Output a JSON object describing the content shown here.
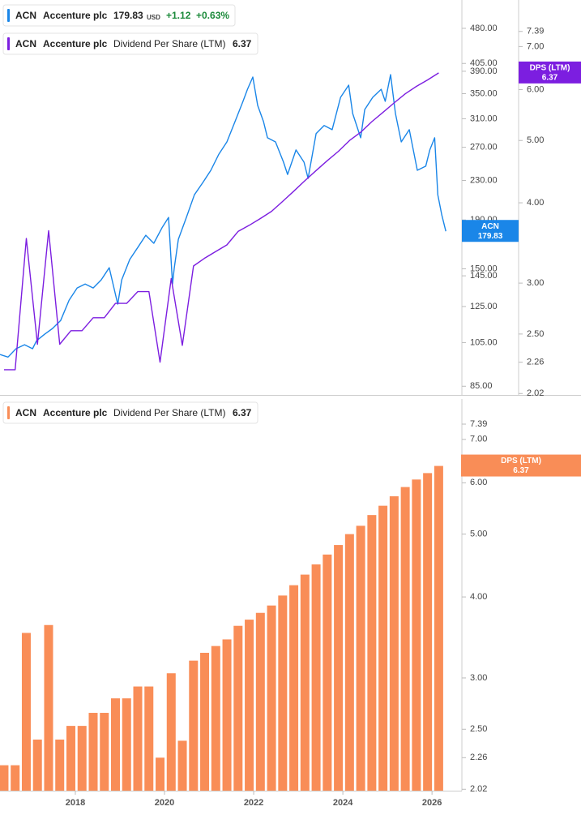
{
  "chart_data": [
    {
      "type": "line",
      "quote": {
        "currency": "USD",
        "change": "+1.12",
        "change_pct": "+0.63%"
      },
      "log": true,
      "xlim": [
        2016.31,
        2026.67
      ],
      "ylim": [
        81.5,
        550.5
      ],
      "yticks": [
        {
          "value": 85,
          "label": "85.00"
        },
        {
          "value": 105,
          "label": "105.00"
        },
        {
          "value": 125,
          "label": "125.00"
        },
        {
          "value": 145,
          "label": "145.00"
        },
        {
          "value": 150,
          "label": "150.00"
        },
        {
          "value": 190,
          "label": "190.00"
        },
        {
          "value": 230,
          "label": "230.00"
        },
        {
          "value": 270,
          "label": "270.00"
        },
        {
          "value": 310,
          "label": "310.00"
        },
        {
          "value": 350,
          "label": "350.00"
        },
        {
          "value": 390,
          "label": "390.00"
        },
        {
          "value": 405,
          "label": "405.00"
        },
        {
          "value": 480,
          "label": "480.00"
        }
      ],
      "y2lim": [
        2.01,
        8.27
      ],
      "y2ticks": [
        2.02,
        2.26,
        {
          "value": 2.5,
          "label": "2.50"
        },
        {
          "value": 3,
          "label": "3.00"
        },
        {
          "value": 4,
          "label": "4.00"
        },
        {
          "value": 5,
          "label": "5.00"
        },
        {
          "value": 6,
          "label": "6.00"
        },
        {
          "value": 7,
          "label": "7.00"
        },
        7.39
      ],
      "series": [
        {
          "ticker": "ACN",
          "name": "Accenture plc",
          "color": "#1a86e8",
          "x": [
            2016.31,
            2016.49,
            2016.67,
            2016.86,
            2017.04,
            2017.13,
            2017.31,
            2017.49,
            2017.67,
            2017.86,
            2018.04,
            2018.22,
            2018.4,
            2018.58,
            2018.76,
            2018.95,
            2019.04,
            2019.22,
            2019.4,
            2019.58,
            2019.76,
            2019.95,
            2020.09,
            2020.18,
            2020.22,
            2020.31,
            2020.49,
            2020.67,
            2020.86,
            2021.04,
            2021.22,
            2021.4,
            2021.58,
            2021.76,
            2021.86,
            2021.98,
            2022.09,
            2022.22,
            2022.31,
            2022.49,
            2022.67,
            2022.76,
            2022.95,
            2023.13,
            2023.22,
            2023.4,
            2023.58,
            2023.76,
            2023.95,
            2024.13,
            2024.22,
            2024.4,
            2024.49,
            2024.67,
            2024.86,
            2024.95,
            2025.07,
            2025.18,
            2025.31,
            2025.49,
            2025.67,
            2025.86,
            2025.95,
            2026.06,
            2026.13,
            2026.22,
            2026.31
          ],
          "values": [
            99.1,
            97.9,
            101.9,
            103.9,
            101.9,
            105.9,
            109.3,
            112.4,
            116.8,
            128.9,
            136.7,
            139.4,
            136.7,
            142.2,
            150.8,
            126.4,
            142.2,
            156.9,
            166.3,
            176.4,
            169.7,
            183.4,
            192.3,
            139.4,
            150.8,
            173.0,
            192.3,
            214.6,
            227.7,
            241.6,
            261.2,
            277.1,
            305.6,
            337.3,
            357.5,
            379.2,
            330.6,
            305.6,
            282.7,
            277.1,
            251.2,
            236.8,
            266.5,
            251.2,
            232.3,
            288.4,
            299.9,
            294.0,
            343.8,
            364.7,
            318.0,
            282.7,
            324.1,
            343.8,
            357.5,
            337.3,
            383.7,
            318.0,
            277.1,
            294.0,
            241.6,
            246.4,
            266.5,
            282.7,
            214.6,
            194.6,
            179.83
          ]
        },
        {
          "ticker": "ACN",
          "company": "Accenture plc",
          "name": "Dividend Per Share (LTM)",
          "tag": "DPS (LTM)",
          "color": "#7c1ee0",
          "axis": "y2",
          "x": [
            2016.4,
            2016.65,
            2016.9,
            2017.15,
            2017.4,
            2017.65,
            2017.9,
            2018.15,
            2018.4,
            2018.65,
            2018.9,
            2019.15,
            2019.4,
            2019.65,
            2019.9,
            2020.15,
            2020.4,
            2020.65,
            2020.9,
            2021.15,
            2021.4,
            2021.65,
            2021.9,
            2022.15,
            2022.4,
            2022.65,
            2022.9,
            2023.15,
            2023.4,
            2023.65,
            2023.9,
            2024.15,
            2024.4,
            2024.65,
            2024.9,
            2025.15,
            2025.4,
            2025.65,
            2025.9,
            2026.15
          ],
          "values": [
            2.2,
            2.2,
            3.52,
            2.41,
            3.62,
            2.41,
            2.53,
            2.53,
            2.65,
            2.65,
            2.79,
            2.79,
            2.91,
            2.91,
            2.26,
            3.05,
            2.4,
            3.19,
            3.28,
            3.36,
            3.44,
            3.61,
            3.69,
            3.78,
            3.88,
            4.02,
            4.17,
            4.33,
            4.49,
            4.65,
            4.81,
            5.0,
            5.15,
            5.35,
            5.53,
            5.72,
            5.91,
            6.07,
            6.21,
            6.37
          ]
        }
      ]
    },
    {
      "type": "bar",
      "log": true,
      "xlim": [
        2016.31,
        2026.67
      ],
      "xticks": [
        2018,
        2020,
        2022,
        2024,
        2026
      ],
      "ylim": [
        2.01,
        8.08
      ],
      "yticks": [
        2.02,
        2.26,
        {
          "value": 2.5,
          "label": "2.50"
        },
        {
          "value": 3,
          "label": "3.00"
        },
        {
          "value": 4,
          "label": "4.00"
        },
        {
          "value": 5,
          "label": "5.00"
        },
        {
          "value": 6,
          "label": "6.00"
        },
        {
          "value": 7,
          "label": "7.00"
        },
        7.39
      ],
      "series": [
        {
          "ticker": "ACN",
          "company": "Accenture plc",
          "name": "Dividend Per Share (LTM)",
          "tag": "DPS (LTM)",
          "color": "#f98d57",
          "x": [
            2016.4,
            2016.65,
            2016.9,
            2017.15,
            2017.4,
            2017.65,
            2017.9,
            2018.15,
            2018.4,
            2018.65,
            2018.9,
            2019.15,
            2019.4,
            2019.65,
            2019.9,
            2020.15,
            2020.4,
            2020.65,
            2020.9,
            2021.15,
            2021.4,
            2021.65,
            2021.9,
            2022.15,
            2022.4,
            2022.65,
            2022.9,
            2023.15,
            2023.4,
            2023.65,
            2023.9,
            2024.15,
            2024.4,
            2024.65,
            2024.9,
            2025.15,
            2025.4,
            2025.65,
            2025.9,
            2026.15
          ],
          "values": [
            2.2,
            2.2,
            3.52,
            2.41,
            3.62,
            2.41,
            2.53,
            2.53,
            2.65,
            2.65,
            2.79,
            2.79,
            2.91,
            2.91,
            2.26,
            3.05,
            2.4,
            3.19,
            3.28,
            3.36,
            3.44,
            3.61,
            3.69,
            3.78,
            3.88,
            4.02,
            4.17,
            4.33,
            4.49,
            4.65,
            4.81,
            5.0,
            5.15,
            5.35,
            5.53,
            5.72,
            5.91,
            6.07,
            6.21,
            6.37
          ]
        }
      ]
    }
  ]
}
